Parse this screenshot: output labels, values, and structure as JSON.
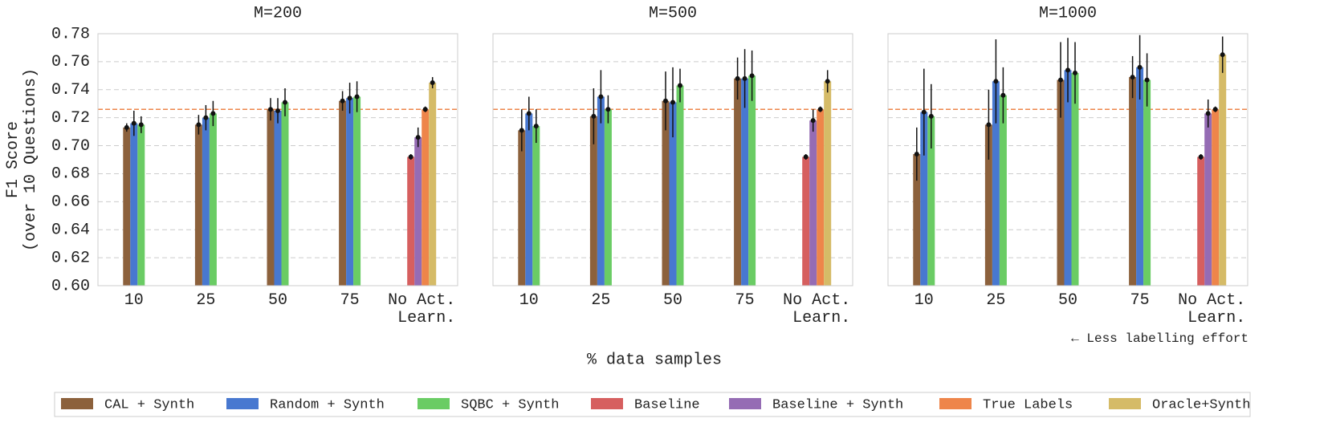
{
  "x_label": "% data samples",
  "y_label": "F1 Score\n(over 10 Questions)",
  "annotation": "← Less labelling effort",
  "chart_data": [
    {
      "type": "bar",
      "title": "M=200",
      "categories": [
        "10",
        "25",
        "50",
        "75",
        "No Act.\nLearn."
      ],
      "ylim": [
        0.6,
        0.78
      ],
      "yticks": [
        {
          "value": 0.6,
          "label": "0.60"
        },
        0.62,
        0.64,
        0.66,
        0.68,
        {
          "value": 0.7,
          "label": "0.70"
        },
        0.72,
        0.74,
        0.76,
        0.78
      ],
      "grid": true,
      "reference_line": 0.726,
      "reference_color": "#ee854a",
      "series": [
        {
          "name": "CAL + Synth",
          "color": "#8c613c",
          "values": [
            0.713,
            0.715,
            0.726,
            0.732,
            null
          ],
          "errors": [
            0.003,
            0.007,
            0.008,
            0.007,
            null
          ]
        },
        {
          "name": "Random + Synth",
          "color": "#4878d0",
          "values": [
            0.716,
            0.72,
            0.725,
            0.734,
            null
          ],
          "errors": [
            0.009,
            0.009,
            0.009,
            0.011,
            null
          ]
        },
        {
          "name": "SQBC + Synth",
          "color": "#6acc64",
          "values": [
            0.715,
            0.723,
            0.731,
            0.735,
            null
          ],
          "errors": [
            0.006,
            0.009,
            0.01,
            0.011,
            null
          ]
        },
        {
          "name": "Baseline",
          "color": "#d65f5f",
          "values": [
            null,
            null,
            null,
            null,
            0.692
          ],
          "errors": [
            null,
            null,
            null,
            null,
            0.002
          ]
        },
        {
          "name": "Baseline + Synth",
          "color": "#956cb4",
          "values": [
            null,
            null,
            null,
            null,
            0.706
          ],
          "errors": [
            null,
            null,
            null,
            null,
            0.007
          ]
        },
        {
          "name": "True Labels",
          "color": "#ee854a",
          "values": [
            null,
            null,
            null,
            null,
            0.726
          ],
          "errors": [
            null,
            null,
            null,
            null,
            0.002
          ]
        },
        {
          "name": "Oracle+Synth",
          "color": "#d5bb67",
          "values": [
            null,
            null,
            null,
            null,
            0.745
          ],
          "errors": [
            null,
            null,
            null,
            null,
            0.004
          ]
        }
      ]
    },
    {
      "type": "bar",
      "title": "M=500",
      "categories": [
        "10",
        "25",
        "50",
        "75",
        "No Act.\nLearn."
      ],
      "ylim": [
        0.6,
        0.78
      ],
      "yticks": [
        {
          "value": 0.6,
          "label": "0.60"
        },
        0.62,
        0.64,
        0.66,
        0.68,
        {
          "value": 0.7,
          "label": "0.70"
        },
        0.72,
        0.74,
        0.76,
        0.78
      ],
      "grid": true,
      "reference_line": 0.726,
      "reference_color": "#ee854a",
      "series": [
        {
          "name": "CAL + Synth",
          "color": "#8c613c",
          "values": [
            0.711,
            0.721,
            0.732,
            0.748,
            null
          ],
          "errors": [
            0.015,
            0.02,
            0.021,
            0.015,
            null
          ]
        },
        {
          "name": "Random + Synth",
          "color": "#4878d0",
          "values": [
            0.723,
            0.735,
            0.731,
            0.748,
            null
          ],
          "errors": [
            0.012,
            0.019,
            0.025,
            0.021,
            null
          ]
        },
        {
          "name": "SQBC + Synth",
          "color": "#6acc64",
          "values": [
            0.714,
            0.726,
            0.743,
            0.75,
            null
          ],
          "errors": [
            0.012,
            0.01,
            0.012,
            0.018,
            null
          ]
        },
        {
          "name": "Baseline",
          "color": "#d65f5f",
          "values": [
            null,
            null,
            null,
            null,
            0.692
          ],
          "errors": [
            null,
            null,
            null,
            null,
            0.002
          ]
        },
        {
          "name": "Baseline + Synth",
          "color": "#956cb4",
          "values": [
            null,
            null,
            null,
            null,
            0.718
          ],
          "errors": [
            null,
            null,
            null,
            null,
            0.008
          ]
        },
        {
          "name": "True Labels",
          "color": "#ee854a",
          "values": [
            null,
            null,
            null,
            null,
            0.726
          ],
          "errors": [
            null,
            null,
            null,
            null,
            0.002
          ]
        },
        {
          "name": "Oracle+Synth",
          "color": "#d5bb67",
          "values": [
            null,
            null,
            null,
            null,
            0.746
          ],
          "errors": [
            null,
            null,
            null,
            null,
            0.008
          ]
        }
      ]
    },
    {
      "type": "bar",
      "title": "M=1000",
      "categories": [
        "10",
        "25",
        "50",
        "75",
        "No Act.\nLearn."
      ],
      "ylim": [
        0.6,
        0.78
      ],
      "yticks": [
        {
          "value": 0.6,
          "label": "0.60"
        },
        0.62,
        0.64,
        0.66,
        0.68,
        {
          "value": 0.7,
          "label": "0.70"
        },
        0.72,
        0.74,
        0.76,
        0.78
      ],
      "grid": true,
      "reference_line": 0.726,
      "reference_color": "#ee854a",
      "series": [
        {
          "name": "CAL + Synth",
          "color": "#8c613c",
          "values": [
            0.694,
            0.715,
            0.747,
            0.749,
            null
          ],
          "errors": [
            0.019,
            0.025,
            0.027,
            0.015,
            null
          ]
        },
        {
          "name": "Random + Synth",
          "color": "#4878d0",
          "values": [
            0.724,
            0.746,
            0.754,
            0.756,
            null
          ],
          "errors": [
            0.031,
            0.03,
            0.023,
            0.023,
            null
          ]
        },
        {
          "name": "SQBC + Synth",
          "color": "#6acc64",
          "values": [
            0.721,
            0.736,
            0.752,
            0.747,
            null
          ],
          "errors": [
            0.023,
            0.02,
            0.022,
            0.019,
            null
          ]
        },
        {
          "name": "Baseline",
          "color": "#d65f5f",
          "values": [
            null,
            null,
            null,
            null,
            0.692
          ],
          "errors": [
            null,
            null,
            null,
            null,
            0.002
          ]
        },
        {
          "name": "Baseline + Synth",
          "color": "#956cb4",
          "values": [
            null,
            null,
            null,
            null,
            0.723
          ],
          "errors": [
            null,
            null,
            null,
            null,
            0.01
          ]
        },
        {
          "name": "True Labels",
          "color": "#ee854a",
          "values": [
            null,
            null,
            null,
            null,
            0.726
          ],
          "errors": [
            null,
            null,
            null,
            null,
            0.002
          ]
        },
        {
          "name": "Oracle+Synth",
          "color": "#d5bb67",
          "values": [
            null,
            null,
            null,
            null,
            0.765
          ],
          "errors": [
            null,
            null,
            null,
            null,
            0.013
          ]
        }
      ]
    }
  ]
}
